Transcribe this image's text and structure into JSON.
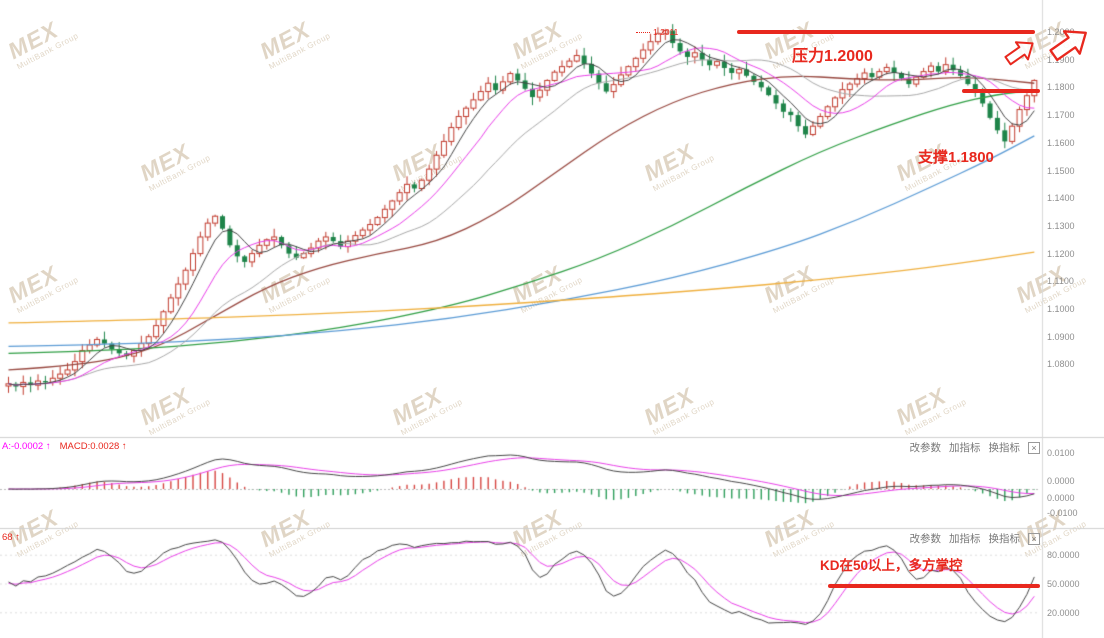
{
  "app": {
    "watermark": {
      "brand": "MEX",
      "subtitle": "MultiBank Group"
    }
  },
  "panels": {
    "controls": {
      "items": [
        "改参数",
        "加指标",
        "换指标"
      ],
      "close": "×"
    },
    "macd": {
      "left_values": [
        {
          "text": "A:-0.0002 ↑",
          "color": "#ff00ff"
        },
        {
          "text": "MACD:0.0028 ↑",
          "color": "#e8281e"
        }
      ],
      "axis_labels": [
        "0.0100",
        "0.0000",
        "0.0000",
        "-0.0100"
      ]
    },
    "kd": {
      "left_values": [
        {
          "text": "68 ↑",
          "color": "#e8281e"
        }
      ],
      "axis_labels": [
        {
          "text": "80.0000",
          "level": 80
        },
        {
          "text": "50.0000",
          "level": 50
        },
        {
          "text": "20.0000",
          "level": 20
        }
      ]
    }
  },
  "annotations": {
    "high_label": "1.2011",
    "resistance_text": "压力1.2000",
    "support_text": "支撑1.1800",
    "kd_text": "KD在50以上，多方掌控",
    "accent_color": "#e8281e"
  },
  "chart_data": {
    "type": "candlestick",
    "price_axis_labels": [
      "1.2000",
      "1.1900",
      "1.1800",
      "1.1700",
      "1.1600",
      "1.1500",
      "1.1400",
      "1.1300",
      "1.1200",
      "1.1100",
      "1.1000",
      "1.0900",
      "1.0800"
    ],
    "levels": {
      "resistance": 1.2,
      "support": 1.18,
      "kd_level": 50
    },
    "candles": {
      "up_color": "#c13b2e",
      "down_color": "#1e8449",
      "peak": {
        "index": 89,
        "high": 1.2011
      },
      "closes": [
        1.073,
        1.072,
        1.0735,
        1.0725,
        1.074,
        1.0735,
        1.075,
        1.0765,
        1.078,
        1.081,
        1.085,
        1.087,
        1.089,
        1.0875,
        1.0855,
        1.084,
        1.083,
        1.085,
        1.0875,
        1.09,
        1.094,
        1.099,
        1.104,
        1.109,
        1.114,
        1.12,
        1.126,
        1.131,
        1.1335,
        1.129,
        1.123,
        1.119,
        1.117,
        1.12,
        1.123,
        1.125,
        1.126,
        1.123,
        1.12,
        1.1185,
        1.12,
        1.122,
        1.1245,
        1.126,
        1.1245,
        1.1225,
        1.1245,
        1.1265,
        1.1285,
        1.1305,
        1.133,
        1.136,
        1.139,
        1.142,
        1.145,
        1.1435,
        1.1465,
        1.1505,
        1.1555,
        1.1605,
        1.1655,
        1.1695,
        1.1725,
        1.1755,
        1.1785,
        1.1815,
        1.179,
        1.182,
        1.185,
        1.1825,
        1.1795,
        1.1765,
        1.179,
        1.1825,
        1.1855,
        1.1875,
        1.1895,
        1.1915,
        1.1885,
        1.185,
        1.1815,
        1.1785,
        1.181,
        1.1845,
        1.1875,
        1.1905,
        1.1935,
        1.1965,
        1.1995,
        1.2005,
        1.196,
        1.193,
        1.191,
        1.1925,
        1.19,
        1.188,
        1.1893,
        1.187,
        1.1852,
        1.1865,
        1.1842,
        1.182,
        1.18,
        1.1772,
        1.1742,
        1.1712,
        1.17,
        1.166,
        1.163,
        1.166,
        1.1695,
        1.173,
        1.1762,
        1.1792,
        1.1812,
        1.1832,
        1.1852,
        1.1837,
        1.1857,
        1.1872,
        1.1852,
        1.1832,
        1.1812,
        1.1837,
        1.1857,
        1.1877,
        1.1857,
        1.1882,
        1.1862,
        1.1842,
        1.1812,
        1.1782,
        1.1742,
        1.169,
        1.1645,
        1.1605,
        1.166,
        1.172,
        1.177,
        1.1825
      ]
    },
    "moving_averages": {
      "short": [
        {
          "name": "ma-fast",
          "window": 5,
          "color": "#444444"
        },
        {
          "name": "ma-mid",
          "window": 10,
          "color": "#e83ee8"
        },
        {
          "name": "ma-slow",
          "window": 20,
          "color": "#a8a8a8"
        }
      ],
      "long": [
        {
          "name": "ma-brown",
          "color": "#97473f",
          "points": [
            [
              0,
              1.078
            ],
            [
              10,
              1.0795
            ],
            [
              20,
              1.0855
            ],
            [
              28,
              1.0975
            ],
            [
              35,
              1.108
            ],
            [
              42,
              1.115
            ],
            [
              50,
              1.12
            ],
            [
              58,
              1.124
            ],
            [
              66,
              1.134
            ],
            [
              74,
              1.149
            ],
            [
              82,
              1.164
            ],
            [
              90,
              1.175
            ],
            [
              98,
              1.1815
            ],
            [
              106,
              1.1845
            ],
            [
              114,
              1.183
            ],
            [
              122,
              1.1825
            ],
            [
              130,
              1.184
            ],
            [
              139,
              1.1815
            ]
          ]
        },
        {
          "name": "ma-green",
          "color": "#2f9e44",
          "points": [
            [
              0,
              1.084
            ],
            [
              15,
              1.085
            ],
            [
              30,
              1.088
            ],
            [
              45,
              1.093
            ],
            [
              60,
              1.101
            ],
            [
              70,
              1.109
            ],
            [
              80,
              1.118
            ],
            [
              90,
              1.13
            ],
            [
              100,
              1.144
            ],
            [
              110,
              1.157
            ],
            [
              120,
              1.167
            ],
            [
              128,
              1.174
            ],
            [
              134,
              1.1775
            ],
            [
              139,
              1.179
            ]
          ]
        },
        {
          "name": "ma-blue",
          "color": "#5b9bd5",
          "points": [
            [
              0,
              1.0865
            ],
            [
              15,
              1.0872
            ],
            [
              30,
              1.089
            ],
            [
              45,
              1.092
            ],
            [
              60,
              1.0965
            ],
            [
              75,
              1.103
            ],
            [
              90,
              1.111
            ],
            [
              105,
              1.122
            ],
            [
              115,
              1.132
            ],
            [
              125,
              1.144
            ],
            [
              133,
              1.154
            ],
            [
              139,
              1.1625
            ]
          ]
        },
        {
          "name": "ma-orange",
          "color": "#efaf3d",
          "points": [
            [
              0,
              1.095
            ],
            [
              20,
              1.0962
            ],
            [
              40,
              1.098
            ],
            [
              60,
              1.1005
            ],
            [
              80,
              1.104
            ],
            [
              95,
              1.107
            ],
            [
              110,
              1.1105
            ],
            [
              125,
              1.115
            ],
            [
              139,
              1.1205
            ]
          ]
        }
      ]
    },
    "macd": {
      "current": "0.0028",
      "hist_up_color": "#d64541",
      "hist_down_color": "#2e9e5b",
      "dif_color": "#444444",
      "dea_color": "#e83ee8"
    },
    "kd": {
      "k_color": "#444444",
      "d_color": "#e83ee8",
      "gridlines": [
        80,
        50,
        20
      ]
    }
  }
}
